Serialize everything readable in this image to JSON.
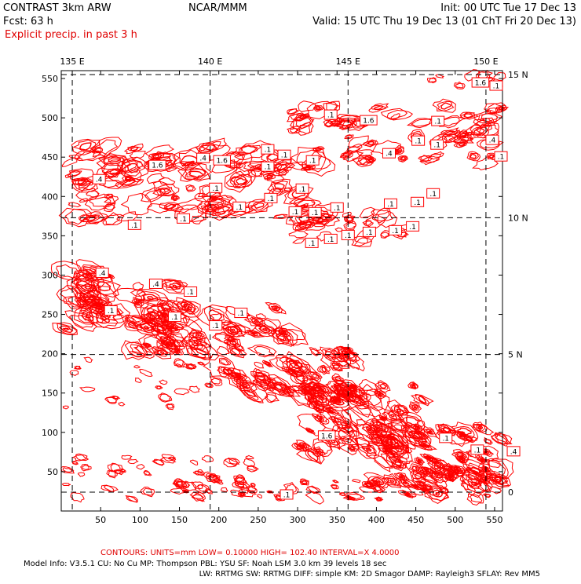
{
  "header": {
    "model": "CONTRAST  3km ARW",
    "center": "NCAR/MMM",
    "init": "Init: 00 UTC Tue 17 Dec 13",
    "fcst": "Fcst:    63 h",
    "valid": "Valid: 15 UTC Thu 19 Dec 13 (01 ChT Fri 20 Dec 13)",
    "field": "Explicit precip. in past 3 h"
  },
  "footer": {
    "contours": "CONTOURS:  UNITS=mm  LOW= 0.10000       HIGH=  102.40       INTERVAL=X  4.0000",
    "line1": "Model Info: V3.5.1     CU: No Cu     MP: Thompson     PBL: YSU       SF: Noah LSM     3.0 km   39 levels    18 sec",
    "line2": "LW: RRTMG     SW: RRTMG   DIFF: simple KM: 2D Smagor DAMP: Rayleigh3   SFLAY: Rev MM5"
  },
  "colors": {
    "contour": "#ff0000",
    "axis": "#000000",
    "grid": "#000000"
  },
  "chart_data": {
    "type": "contour",
    "title": "Explicit precip. in past 3 h",
    "units": "mm",
    "contour_low": 0.1,
    "contour_high": 102.4,
    "contour_interval": "X 4.0",
    "xlim": [
      0,
      560
    ],
    "ylim": [
      0,
      560
    ],
    "x_ticks": [
      "50",
      "100",
      "150",
      "200",
      "250",
      "300",
      "350",
      "400",
      "450",
      "500",
      "550"
    ],
    "y_ticks": [
      "50",
      "100",
      "150",
      "200",
      "250",
      "300",
      "350",
      "400",
      "450",
      "500",
      "550"
    ],
    "lon_ticks": [
      "135 E",
      "140 E",
      "145 E",
      "150 E"
    ],
    "lon_positions": [
      14,
      189,
      364,
      539
    ],
    "lat_ticks": [
      "15 N",
      "10 N",
      "5 N",
      "0"
    ],
    "lat_positions": [
      555,
      373,
      199,
      24
    ],
    "grid": "dashed",
    "labels": [
      {
        "t": "1.6",
        "x": 532,
        "y": 545
      },
      {
        "t": ".1",
        "x": 552,
        "y": 541
      },
      {
        "t": ".1",
        "x": 342,
        "y": 504
      },
      {
        "t": "1.6",
        "x": 390,
        "y": 497
      },
      {
        "t": ".1",
        "x": 478,
        "y": 496
      },
      {
        "t": ".4",
        "x": 547,
        "y": 472
      },
      {
        "t": ".1",
        "x": 453,
        "y": 471
      },
      {
        "t": ".1",
        "x": 477,
        "y": 466
      },
      {
        "t": ".4",
        "x": 416,
        "y": 455
      },
      {
        "t": ".1",
        "x": 558,
        "y": 451
      },
      {
        "t": ".1",
        "x": 262,
        "y": 460
      },
      {
        "t": ".1",
        "x": 283,
        "y": 453
      },
      {
        "t": ".4",
        "x": 180,
        "y": 449
      },
      {
        "t": "1.6",
        "x": 204,
        "y": 446
      },
      {
        "t": ".1",
        "x": 319,
        "y": 446
      },
      {
        "t": ".1",
        "x": 262,
        "y": 438
      },
      {
        "t": "1.6",
        "x": 122,
        "y": 440
      },
      {
        "t": ".4",
        "x": 48,
        "y": 422
      },
      {
        "t": ".1",
        "x": 196,
        "y": 411
      },
      {
        "t": ".1",
        "x": 306,
        "y": 410
      },
      {
        "t": ".1",
        "x": 266,
        "y": 398
      },
      {
        "t": ".1",
        "x": 472,
        "y": 404
      },
      {
        "t": ".1",
        "x": 452,
        "y": 393
      },
      {
        "t": ".1",
        "x": 418,
        "y": 391
      },
      {
        "t": ".1",
        "x": 226,
        "y": 387
      },
      {
        "t": ".1",
        "x": 350,
        "y": 386
      },
      {
        "t": ".1",
        "x": 322,
        "y": 380
      },
      {
        "t": ".1",
        "x": 297,
        "y": 381
      },
      {
        "t": ".1",
        "x": 155,
        "y": 372
      },
      {
        "t": ".1",
        "x": 93,
        "y": 364
      },
      {
        "t": ".1",
        "x": 446,
        "y": 362
      },
      {
        "t": ".1",
        "x": 424,
        "y": 357
      },
      {
        "t": ".1",
        "x": 391,
        "y": 355
      },
      {
        "t": ".1",
        "x": 364,
        "y": 351
      },
      {
        "t": ".1",
        "x": 342,
        "y": 346
      },
      {
        "t": ".1",
        "x": 318,
        "y": 341
      },
      {
        "t": ".4",
        "x": 52,
        "y": 303
      },
      {
        "t": ".4",
        "x": 120,
        "y": 289
      },
      {
        "t": ".1",
        "x": 164,
        "y": 279
      },
      {
        "t": ".1",
        "x": 63,
        "y": 255
      },
      {
        "t": ".1",
        "x": 228,
        "y": 252
      },
      {
        "t": ".1",
        "x": 144,
        "y": 247
      },
      {
        "t": ".1",
        "x": 196,
        "y": 236
      },
      {
        "t": "1.6",
        "x": 337,
        "y": 96
      },
      {
        "t": ".1",
        "x": 488,
        "y": 93
      },
      {
        "t": ".1",
        "x": 528,
        "y": 78
      },
      {
        "t": ".4",
        "x": 574,
        "y": 76
      },
      {
        "t": ".1",
        "x": 286,
        "y": 21
      }
    ]
  }
}
